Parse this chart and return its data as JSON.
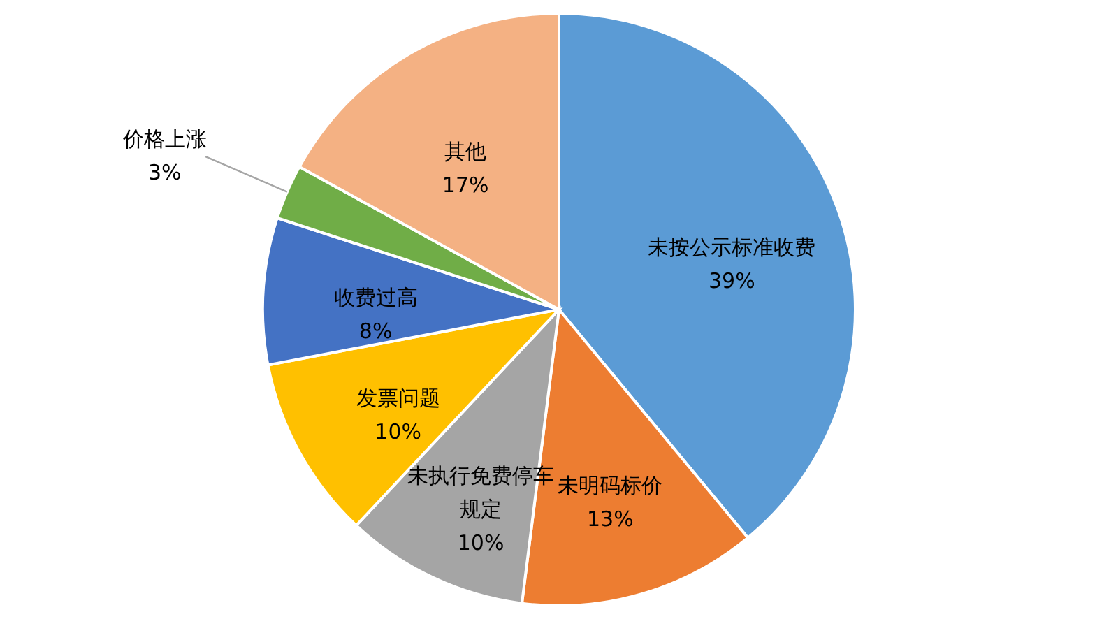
{
  "chart_data": {
    "type": "pie",
    "categories": [
      "未按公示标准收费",
      "未明码标价",
      "未执行免费停车规定",
      "发票问题",
      "收费过高",
      "价格上涨",
      "其他"
    ],
    "values": [
      39,
      13,
      10,
      10,
      8,
      3,
      17
    ],
    "colors": [
      "#5b9bd5",
      "#ed7d31",
      "#a5a5a5",
      "#ffc000",
      "#4472c4",
      "#70ad47",
      "#f4b183"
    ],
    "value_labels": [
      "39%",
      "13%",
      "10%",
      "10%",
      "8%",
      "3%",
      "17%"
    ]
  }
}
